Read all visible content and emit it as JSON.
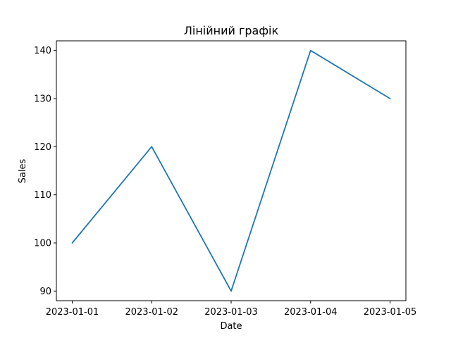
{
  "chart_data": {
    "type": "line",
    "title": "Лінійний графік",
    "xlabel": "Date",
    "ylabel": "Sales",
    "categories": [
      "2023-01-01",
      "2023-01-02",
      "2023-01-03",
      "2023-01-04",
      "2023-01-05"
    ],
    "series": [
      {
        "values": [
          100,
          120,
          90,
          140,
          130
        ],
        "color": "#1f77b4"
      }
    ],
    "ylim": [
      88,
      142
    ],
    "yticks": [
      90,
      100,
      110,
      120,
      130,
      140
    ],
    "grid": false,
    "legend": "none"
  }
}
